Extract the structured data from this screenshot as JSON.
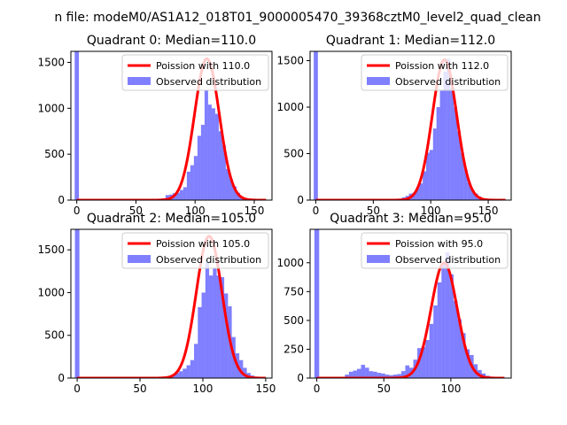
{
  "figure": {
    "suptitle": "n file: modeM0/AS1A12_018T01_9000005470_39368cztM0_level2_quad_clean"
  },
  "chart_data": [
    {
      "type": "bar",
      "title": "Quadrant 0: Median=110.0",
      "xlim": [
        -5,
        165
      ],
      "ylim": [
        0,
        1620
      ],
      "xticks": [
        0,
        50,
        100,
        150
      ],
      "yticks": [
        0,
        500,
        1000,
        1500
      ],
      "legend": {
        "placement": "top-right",
        "line_label": "Poission with 110.0",
        "bar_label": "Observed distribution"
      },
      "zero_bin": {
        "x": 0,
        "value": 1620
      },
      "histogram": {
        "bin_width": 3,
        "bins": [
          [
            66,
            5
          ],
          [
            69,
            10
          ],
          [
            72,
            20
          ],
          [
            75,
            55
          ],
          [
            78,
            60
          ],
          [
            81,
            75
          ],
          [
            84,
            80
          ],
          [
            87,
            110
          ],
          [
            90,
            140
          ],
          [
            93,
            310
          ],
          [
            96,
            380
          ],
          [
            99,
            480
          ],
          [
            102,
            700
          ],
          [
            105,
            820
          ],
          [
            108,
            1200
          ],
          [
            111,
            1040
          ],
          [
            114,
            1000
          ],
          [
            117,
            940
          ],
          [
            120,
            750
          ],
          [
            123,
            600
          ],
          [
            126,
            340
          ],
          [
            129,
            230
          ],
          [
            132,
            150
          ],
          [
            135,
            80
          ],
          [
            138,
            40
          ],
          [
            141,
            20
          ],
          [
            144,
            10
          ],
          [
            147,
            5
          ]
        ]
      },
      "poisson": {
        "mean": 110.0,
        "peak": 1540,
        "sigma": 10.5,
        "x_range": [
          0,
          160
        ]
      }
    },
    {
      "type": "bar",
      "title": "Quadrant 1: Median=112.0",
      "xlim": [
        -5,
        170
      ],
      "ylim": [
        0,
        1600
      ],
      "xticks": [
        0,
        50,
        100,
        150
      ],
      "yticks": [
        0,
        500,
        1000,
        1500
      ],
      "legend": {
        "placement": "top-right",
        "line_label": "Poission with 112.0",
        "bar_label": "Observed distribution"
      },
      "zero_bin": {
        "x": 0,
        "value": 1600
      },
      "histogram": {
        "bin_width": 3,
        "bins": [
          [
            69,
            5
          ],
          [
            72,
            15
          ],
          [
            75,
            30
          ],
          [
            78,
            45
          ],
          [
            81,
            70
          ],
          [
            84,
            80
          ],
          [
            87,
            130
          ],
          [
            90,
            180
          ],
          [
            93,
            310
          ],
          [
            96,
            510
          ],
          [
            99,
            540
          ],
          [
            102,
            770
          ],
          [
            105,
            1000
          ],
          [
            108,
            1180
          ],
          [
            111,
            1380
          ],
          [
            114,
            1520
          ],
          [
            117,
            1200
          ],
          [
            120,
            1000
          ],
          [
            123,
            740
          ],
          [
            126,
            510
          ],
          [
            129,
            330
          ],
          [
            132,
            190
          ],
          [
            135,
            110
          ],
          [
            138,
            70
          ],
          [
            141,
            40
          ],
          [
            144,
            20
          ],
          [
            147,
            10
          ],
          [
            150,
            5
          ]
        ]
      },
      "poisson": {
        "mean": 112.0,
        "peak": 1510,
        "sigma": 10.6,
        "x_range": [
          0,
          165
        ]
      }
    },
    {
      "type": "bar",
      "title": "Quadrant 2: Median=105.0",
      "xlim": [
        -5,
        155
      ],
      "ylim": [
        0,
        1740
      ],
      "xticks": [
        0,
        50,
        100,
        150
      ],
      "yticks": [
        0,
        500,
        1000,
        1500
      ],
      "legend": {
        "placement": "top-right",
        "line_label": "Poission with 105.0",
        "bar_label": "Observed distribution"
      },
      "zero_bin": {
        "x": 0,
        "value": 1740
      },
      "histogram": {
        "bin_width": 3,
        "bins": [
          [
            66,
            10
          ],
          [
            69,
            15
          ],
          [
            72,
            25
          ],
          [
            75,
            40
          ],
          [
            78,
            60
          ],
          [
            81,
            80
          ],
          [
            84,
            110
          ],
          [
            87,
            150
          ],
          [
            90,
            210
          ],
          [
            93,
            400
          ],
          [
            96,
            830
          ],
          [
            99,
            1000
          ],
          [
            102,
            1350
          ],
          [
            105,
            1200
          ],
          [
            108,
            1280
          ],
          [
            111,
            1200
          ],
          [
            114,
            1180
          ],
          [
            117,
            990
          ],
          [
            120,
            840
          ],
          [
            123,
            480
          ],
          [
            126,
            290
          ],
          [
            129,
            210
          ],
          [
            132,
            120
          ],
          [
            135,
            60
          ],
          [
            138,
            30
          ],
          [
            141,
            15
          ],
          [
            144,
            8
          ]
        ]
      },
      "poisson": {
        "mean": 105.0,
        "peak": 1660,
        "sigma": 10.2,
        "x_range": [
          0,
          150
        ]
      }
    },
    {
      "type": "bar",
      "title": "Quadrant 3: Median=95.0",
      "xlim": [
        -5,
        145
      ],
      "ylim": [
        0,
        1290
      ],
      "xticks": [
        0,
        50,
        100
      ],
      "yticks": [
        0,
        250,
        500,
        750,
        1000
      ],
      "legend": {
        "placement": "top-right",
        "line_label": "Poission with 95.0",
        "bar_label": "Observed distribution"
      },
      "zero_bin": {
        "x": 0,
        "value": 1290
      },
      "histogram": {
        "bin_width": 3,
        "bins": [
          [
            21,
            30
          ],
          [
            24,
            55
          ],
          [
            27,
            65
          ],
          [
            30,
            80
          ],
          [
            33,
            115
          ],
          [
            36,
            90
          ],
          [
            39,
            60
          ],
          [
            42,
            55
          ],
          [
            45,
            45
          ],
          [
            48,
            40
          ],
          [
            51,
            30
          ],
          [
            54,
            25
          ],
          [
            57,
            30
          ],
          [
            60,
            35
          ],
          [
            63,
            60
          ],
          [
            66,
            110
          ],
          [
            69,
            90
          ],
          [
            72,
            160
          ],
          [
            75,
            260
          ],
          [
            78,
            270
          ],
          [
            81,
            330
          ],
          [
            84,
            470
          ],
          [
            87,
            630
          ],
          [
            90,
            830
          ],
          [
            93,
            990
          ],
          [
            96,
            1090
          ],
          [
            99,
            900
          ],
          [
            102,
            670
          ],
          [
            105,
            510
          ],
          [
            108,
            390
          ],
          [
            111,
            250
          ],
          [
            114,
            200
          ],
          [
            117,
            120
          ],
          [
            120,
            70
          ],
          [
            123,
            40
          ],
          [
            126,
            20
          ],
          [
            129,
            10
          ]
        ]
      },
      "poisson": {
        "mean": 95.0,
        "peak": 1000,
        "sigma": 9.7,
        "x_range": [
          0,
          140
        ]
      }
    }
  ]
}
